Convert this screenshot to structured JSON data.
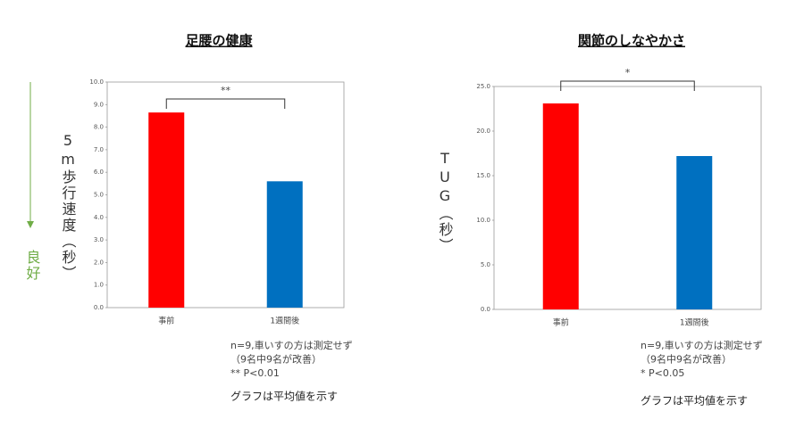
{
  "chart_data": [
    {
      "type": "bar",
      "title": "足腰の健康",
      "y_label": "5m歩行速度（秒）",
      "categories": [
        "事前",
        "1週間後"
      ],
      "values": [
        8.65,
        5.6
      ],
      "colors": [
        "#ff0000",
        "#0070c0"
      ],
      "ylim": [
        0,
        10
      ],
      "yticks": [
        {
          "value": 0,
          "label": "0.0"
        },
        {
          "value": 1,
          "label": "1.0"
        },
        {
          "value": 2,
          "label": "2.0"
        },
        {
          "value": 3,
          "label": "3.0"
        },
        {
          "value": 4,
          "label": "4.0"
        },
        {
          "value": 5,
          "label": "5.0"
        },
        {
          "value": 6,
          "label": "6.0"
        },
        {
          "value": 7,
          "label": "7.0"
        },
        {
          "value": 8,
          "label": "8.0"
        },
        {
          "value": 9,
          "label": "9.0"
        },
        {
          "value": 10,
          "label": "10.0"
        }
      ],
      "significance": "**",
      "side_note": "良好",
      "notes": [
        "n=9,車いすの方は測定せず",
        "（9名中9名が改善）",
        "** P<0.01"
      ],
      "footer": "グラフは平均値を示す"
    },
    {
      "type": "bar",
      "title": "関節のしなやかさ",
      "y_label": "TUG（秒）",
      "categories": [
        "事前",
        "1週間後"
      ],
      "values": [
        23.1,
        17.2
      ],
      "colors": [
        "#ff0000",
        "#0070c0"
      ],
      "ylim": [
        0,
        25
      ],
      "yticks": [
        {
          "value": 0,
          "label": "0.0"
        },
        {
          "value": 5,
          "label": "5.0"
        },
        {
          "value": 10,
          "label": "10.0"
        },
        {
          "value": 15,
          "label": "15.0"
        },
        {
          "value": 20,
          "label": "20.0"
        },
        {
          "value": 25,
          "label": "25.0"
        }
      ],
      "significance": "*",
      "notes": [
        "n=9,車いすの方は測定せず",
        "（9名中9名が改善）",
        "* P<0.05"
      ],
      "footer": "グラフは平均値を示す"
    }
  ]
}
